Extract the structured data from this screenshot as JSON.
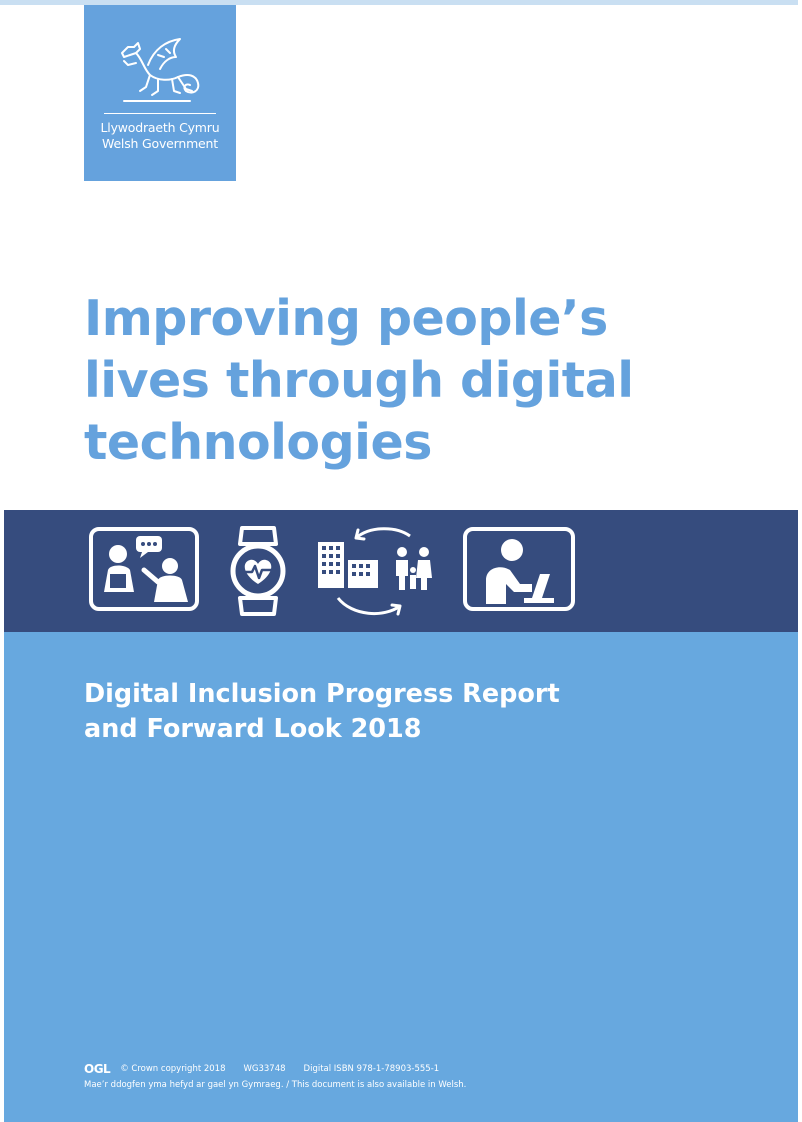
{
  "brand": {
    "name_welsh": "Llywodraeth Cymru",
    "name_english": "Welsh Government",
    "logo_color": "#65a2dd"
  },
  "cover": {
    "title_lines": [
      "Improving people’s",
      "lives through digital",
      "technologies"
    ],
    "title_color": "#65a2dd",
    "band_color": "#364c7e",
    "panel_color": "#67a8df",
    "icons": [
      "people-conversation-icon",
      "smartwatch-heart-icon",
      "buildings-family-icon",
      "person-laptop-icon"
    ],
    "subtitle_lines": [
      "Digital Inclusion Progress Report",
      "and Forward Look 2018"
    ]
  },
  "footer": {
    "ogl": "OGL",
    "copyright": "© Crown copyright 2018",
    "reference": "WG33748",
    "isbn": "Digital ISBN 978-1-78903-555-1",
    "language_note": "Mae’r ddogfen yma hefyd ar gael yn Gymraeg. / This document is also available in Welsh."
  }
}
